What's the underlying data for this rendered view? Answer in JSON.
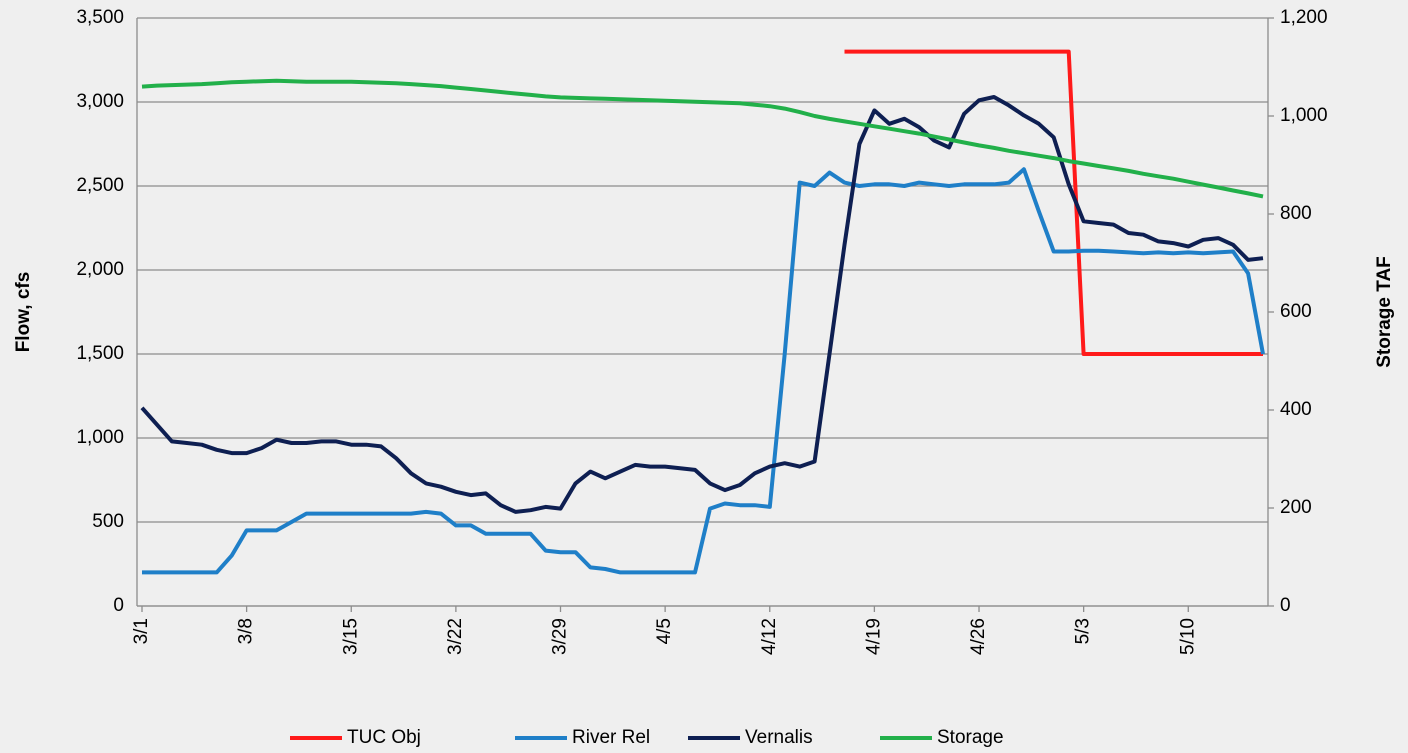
{
  "chart_data": {
    "type": "line",
    "ylabel": "Flow, cfs",
    "y2label": "Storage TAF",
    "categories": [
      "3/1",
      null,
      null,
      null,
      null,
      null,
      null,
      "3/8",
      null,
      null,
      null,
      null,
      null,
      null,
      "3/15",
      null,
      null,
      null,
      null,
      null,
      null,
      "3/22",
      null,
      null,
      null,
      null,
      null,
      null,
      "3/29",
      null,
      null,
      null,
      null,
      null,
      null,
      "4/5",
      null,
      null,
      null,
      null,
      null,
      null,
      "4/12",
      null,
      null,
      null,
      null,
      null,
      null,
      "4/19",
      null,
      null,
      null,
      null,
      null,
      null,
      "4/26",
      null,
      null,
      null,
      null,
      null,
      null,
      "5/3",
      null,
      null,
      null,
      null,
      null,
      null,
      "5/10",
      null,
      null,
      null,
      null,
      null
    ],
    "ylim": [
      0,
      3500
    ],
    "yticks": [
      0,
      500,
      {
        "value": 1000,
        "label": "1,000"
      },
      {
        "value": 1500,
        "label": "1,500"
      },
      {
        "value": 2000,
        "label": "2,000"
      },
      {
        "value": 2500,
        "label": "2,500"
      },
      {
        "value": 3000,
        "label": "3,000"
      },
      {
        "value": 3500,
        "label": "3,500"
      }
    ],
    "y2lim": [
      0,
      1200
    ],
    "y2ticks": [
      0,
      200,
      400,
      600,
      800,
      {
        "value": 1000,
        "label": "1,000"
      },
      {
        "value": 1200,
        "label": "1,200"
      }
    ],
    "grid": true,
    "legend": "bottom",
    "series": [
      {
        "name": "TUC Obj",
        "color": "#ff1a1a",
        "values": [
          null,
          null,
          null,
          null,
          null,
          null,
          null,
          null,
          null,
          null,
          null,
          null,
          null,
          null,
          null,
          null,
          null,
          null,
          null,
          null,
          null,
          null,
          null,
          null,
          null,
          null,
          null,
          null,
          null,
          null,
          null,
          null,
          null,
          null,
          null,
          null,
          null,
          null,
          null,
          null,
          null,
          null,
          null,
          null,
          null,
          null,
          null,
          3300,
          3300,
          3300,
          3300,
          3300,
          3300,
          3300,
          3300,
          3300,
          3300,
          3300,
          3300,
          3300,
          3300,
          3300,
          3300,
          1500,
          1500,
          1500,
          1500,
          1500,
          1500,
          1500,
          1500,
          1500,
          1500,
          1500,
          1500,
          1500
        ]
      },
      {
        "name": "River Rel",
        "color": "#1f7fc8",
        "values": [
          200,
          200,
          200,
          200,
          200,
          200,
          300,
          450,
          450,
          450,
          500,
          550,
          550,
          550,
          550,
          550,
          550,
          550,
          550,
          560,
          550,
          480,
          480,
          430,
          430,
          430,
          430,
          330,
          320,
          320,
          230,
          220,
          200,
          200,
          200,
          200,
          200,
          200,
          580,
          610,
          600,
          600,
          590,
          1500,
          2520,
          2500,
          2580,
          2520,
          2500,
          2510,
          2510,
          2500,
          2520,
          2510,
          2500,
          2510,
          2510,
          2510,
          2520,
          2600,
          2350,
          2110,
          2110,
          2115,
          2115,
          2110,
          2105,
          2100,
          2105,
          2100,
          2105,
          2100,
          2105,
          2110,
          1980,
          1500
        ]
      },
      {
        "name": "Vernalis",
        "color": "#0e1f52",
        "values": [
          1180,
          1080,
          980,
          970,
          960,
          930,
          910,
          910,
          940,
          990,
          970,
          970,
          980,
          980,
          960,
          960,
          950,
          880,
          790,
          730,
          710,
          680,
          660,
          670,
          600,
          560,
          570,
          590,
          580,
          730,
          800,
          760,
          800,
          840,
          830,
          830,
          820,
          810,
          730,
          690,
          720,
          790,
          830,
          850,
          830,
          860,
          1500,
          2150,
          2750,
          2950,
          2870,
          2900,
          2850,
          2770,
          2730,
          2930,
          3010,
          3030,
          2980,
          2920,
          2870,
          2790,
          2510,
          2290,
          2280,
          2270,
          2220,
          2210,
          2170,
          2160,
          2140,
          2180,
          2190,
          2150,
          2060,
          2070
        ]
      },
      {
        "name": "Storage",
        "color": "#22b04a",
        "axis": "y2",
        "values": [
          1060,
          1062,
          1063,
          1064,
          1065,
          1067,
          1069,
          1070,
          1071,
          1072,
          1071,
          1070,
          1070,
          1070,
          1070,
          1069,
          1068,
          1067,
          1065,
          1063,
          1061,
          1058,
          1055,
          1052,
          1049,
          1046,
          1043,
          1040,
          1038,
          1037,
          1036,
          1035,
          1034,
          1033,
          1032,
          1031,
          1030,
          1029,
          1028,
          1027,
          1026,
          1023,
          1020,
          1015,
          1008,
          1000,
          994,
          989,
          984,
          979,
          974,
          969,
          964,
          958,
          952,
          946,
          940,
          935,
          929,
          924,
          919,
          914,
          908,
          903,
          898,
          893,
          888,
          882,
          877,
          872,
          866,
          860,
          854,
          848,
          842,
          836
        ]
      }
    ]
  }
}
